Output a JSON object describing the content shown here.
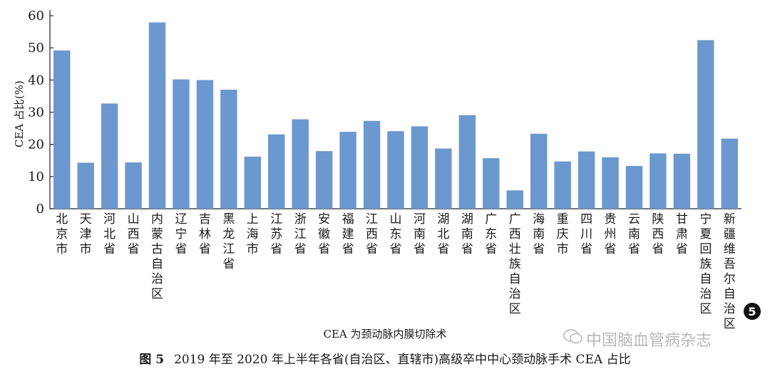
{
  "chart_data": {
    "type": "bar",
    "ylabel": "CEA 占比(%)",
    "xlabel": "CEA 为颈动脉内膜切除术",
    "ylim": [
      0,
      60
    ],
    "yticks": [
      0,
      10,
      20,
      30,
      40,
      50,
      60
    ],
    "grid": false,
    "bar_color": "#6b98ce",
    "categories": [
      "北京市",
      "天津市",
      "河北省",
      "山西省",
      "内蒙古自治区",
      "辽宁省",
      "吉林省",
      "黑龙江省",
      "上海市",
      "江苏省",
      "浙江省",
      "安徽省",
      "福建省",
      "江西省",
      "山东省",
      "河南省",
      "湖北省",
      "湖南省",
      "广东省",
      "广西壮族自治区",
      "海南省",
      "重庆市",
      "四川省",
      "贵州省",
      "云南省",
      "陕西省",
      "甘肃省",
      "宁夏回族自治区",
      "新疆维吾尔自治区"
    ],
    "values": [
      49.2,
      14.3,
      32.7,
      14.4,
      57.9,
      40.2,
      40.0,
      37.0,
      16.2,
      23.1,
      27.8,
      17.9,
      23.9,
      27.3,
      24.1,
      25.6,
      18.7,
      29.1,
      15.7,
      5.7,
      23.3,
      14.7,
      17.8,
      16.0,
      13.3,
      17.2,
      17.1,
      52.4,
      21.8
    ]
  },
  "caption": {
    "label": "图 5",
    "text": "2019 年至 2020 年上半年各省(自治区、直辖市)高级卒中中心颈动脉手术 CEA 占比"
  },
  "watermark": {
    "text": "中国脑血管病杂志",
    "icon": "wechat-icon"
  },
  "badge": {
    "text": "5"
  }
}
